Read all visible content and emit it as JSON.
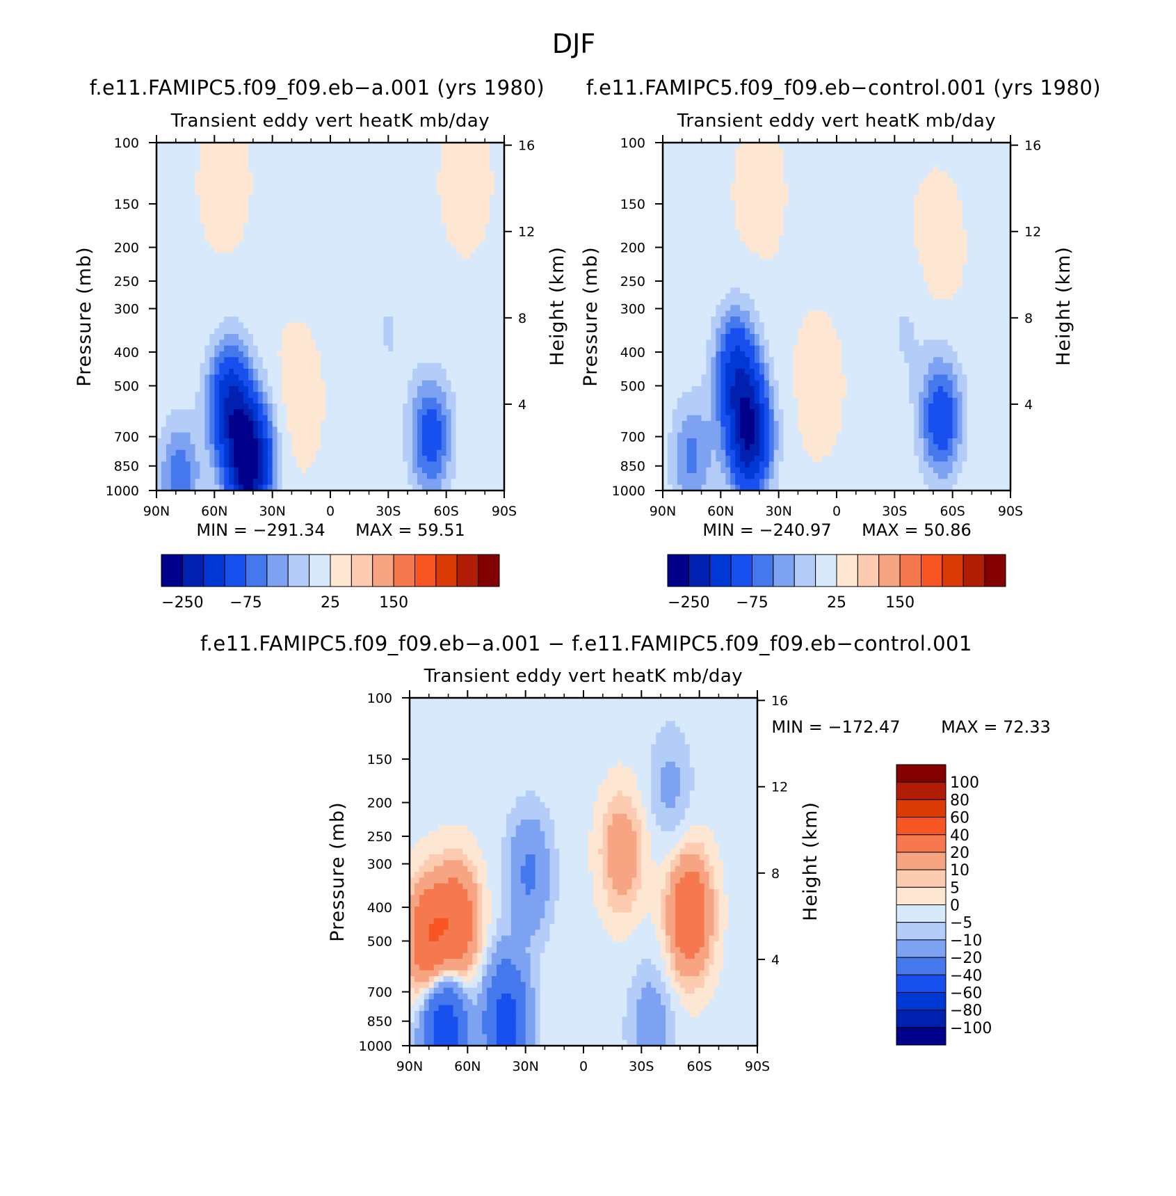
{
  "figure": {
    "title": "DJF"
  },
  "chart_data": [
    {
      "type": "heatmap",
      "subtype": "filled-contour",
      "title": "f.e11.FAMIPC5.f09_f09.eb−a.001 (yrs 1980)",
      "subtitle": "Transient eddy vert heatK mb/day",
      "xlabel": "",
      "ylabel": "Pressure (mb)",
      "y2label": "Height (km)",
      "x_ticks": [
        "90N",
        "60N",
        "30N",
        "0",
        "30S",
        "60S",
        "90S"
      ],
      "x_values": [
        90,
        60,
        30,
        0,
        -30,
        -60,
        -90
      ],
      "y_ticks": [
        "100",
        "150",
        "200",
        "250",
        "300",
        "400",
        "500",
        "700",
        "850",
        "1000"
      ],
      "y_values": [
        100,
        150,
        200,
        250,
        300,
        400,
        500,
        700,
        850,
        1000
      ],
      "y2_ticks": [
        "4",
        "8",
        "12",
        "16"
      ],
      "y2_values": [
        4,
        8,
        12,
        16
      ],
      "ylim": [
        1000,
        100
      ],
      "min_text": "MIN = −291.34",
      "max_text": "MAX =  59.51",
      "min": -291.34,
      "max": 59.51,
      "colorbar_ticks": [
        "−250",
        "−75",
        "25",
        "150"
      ],
      "cores": [
        {
          "lat": 42,
          "p": 830,
          "v": -291
        },
        {
          "lat": 52,
          "p": 560,
          "v": -180
        },
        {
          "lat": 78,
          "p": 920,
          "v": -90
        },
        {
          "lat": -52,
          "p": 700,
          "v": -120
        },
        {
          "lat": -30,
          "p": 350,
          "v": -25
        },
        {
          "lat": 18,
          "p": 550,
          "v": 12
        },
        {
          "lat": 55,
          "p": 130,
          "v": 10
        },
        {
          "lat": -70,
          "p": 130,
          "v": 10
        }
      ]
    },
    {
      "type": "heatmap",
      "subtype": "filled-contour",
      "title": "f.e11.FAMIPC5.f09_f09.eb−control.001 (yrs 1980)",
      "subtitle": "Transient eddy vert heatK mb/day",
      "xlabel": "",
      "ylabel": "Pressure (mb)",
      "y2label": "Height (km)",
      "x_ticks": [
        "90N",
        "60N",
        "30N",
        "0",
        "30S",
        "60S",
        "90S"
      ],
      "x_values": [
        90,
        60,
        30,
        0,
        -30,
        -60,
        -90
      ],
      "y_ticks": [
        "100",
        "150",
        "200",
        "250",
        "300",
        "400",
        "500",
        "700",
        "850",
        "1000"
      ],
      "y_values": [
        100,
        150,
        200,
        250,
        300,
        400,
        500,
        700,
        850,
        1000
      ],
      "y2_ticks": [
        "4",
        "8",
        "12",
        "16"
      ],
      "y2_values": [
        4,
        8,
        12,
        16
      ],
      "ylim": [
        1000,
        100
      ],
      "min_text": "MIN = −240.97",
      "max_text": "MAX =  50.86",
      "min": -240.97,
      "max": 50.86,
      "colorbar_ticks": [
        "−250",
        "−75",
        "25",
        "150"
      ],
      "cores": [
        {
          "lat": 45,
          "p": 700,
          "v": -240
        },
        {
          "lat": 52,
          "p": 450,
          "v": -150
        },
        {
          "lat": 75,
          "p": 800,
          "v": -80
        },
        {
          "lat": -54,
          "p": 620,
          "v": -130
        },
        {
          "lat": -35,
          "p": 350,
          "v": -25
        },
        {
          "lat": 10,
          "p": 500,
          "v": 10
        },
        {
          "lat": 40,
          "p": 140,
          "v": 10
        },
        {
          "lat": -52,
          "p": 200,
          "v": 12
        }
      ]
    },
    {
      "type": "heatmap",
      "subtype": "filled-contour",
      "title": "f.e11.FAMIPC5.f09_f09.eb−a.001 − f.e11.FAMIPC5.f09_f09.eb−control.001",
      "subtitle": "Transient eddy vert heatK mb/day",
      "xlabel": "",
      "ylabel": "Pressure (mb)",
      "y2label": "Height (km)",
      "x_ticks": [
        "90N",
        "60N",
        "30N",
        "0",
        "30S",
        "60S",
        "90S"
      ],
      "x_values": [
        90,
        60,
        30,
        0,
        -30,
        -60,
        -90
      ],
      "y_ticks": [
        "100",
        "150",
        "200",
        "250",
        "300",
        "400",
        "500",
        "700",
        "850",
        "1000"
      ],
      "y_values": [
        100,
        150,
        200,
        250,
        300,
        400,
        500,
        700,
        850,
        1000
      ],
      "y2_ticks": [
        "4",
        "8",
        "12",
        "16"
      ],
      "y2_values": [
        4,
        8,
        12,
        16
      ],
      "ylim": [
        1000,
        100
      ],
      "min_text": "MIN = −172.47",
      "max_text": "MAX =  72.33",
      "min": -172.47,
      "max": 72.33,
      "colorbar_labels": [
        "100",
        "80",
        "60",
        "40",
        "20",
        "10",
        "5",
        "0",
        "−5",
        "−10",
        "−20",
        "−40",
        "−60",
        "−80",
        "−100"
      ],
      "cores": [
        {
          "lat": 80,
          "p": 500,
          "v": 40
        },
        {
          "lat": 65,
          "p": 450,
          "v": 35
        },
        {
          "lat": 72,
          "p": 900,
          "v": -60
        },
        {
          "lat": 40,
          "p": 850,
          "v": -50
        },
        {
          "lat": 28,
          "p": 320,
          "v": -20
        },
        {
          "lat": -20,
          "p": 280,
          "v": 20
        },
        {
          "lat": -55,
          "p": 420,
          "v": 40
        },
        {
          "lat": -45,
          "p": 180,
          "v": -10
        },
        {
          "lat": -35,
          "p": 900,
          "v": -15
        }
      ]
    }
  ],
  "palette": {
    "levels_main": [
      -250,
      -200,
      -150,
      -100,
      -75,
      -50,
      -25,
      0,
      25,
      50,
      75,
      100,
      150,
      200,
      250
    ],
    "levels_diff": [
      -100,
      -80,
      -60,
      -40,
      -20,
      -10,
      -5,
      0,
      5,
      10,
      20,
      40,
      60,
      80,
      100
    ],
    "colors": [
      "#00008a",
      "#0020b0",
      "#0038d6",
      "#1850f0",
      "#4478ec",
      "#7ea2f2",
      "#b4cdf8",
      "#d8e9fb",
      "#fde6d2",
      "#fccbb0",
      "#f7a483",
      "#f5784e",
      "#f75522",
      "#da3a06",
      "#b11c04",
      "#830000"
    ]
  }
}
